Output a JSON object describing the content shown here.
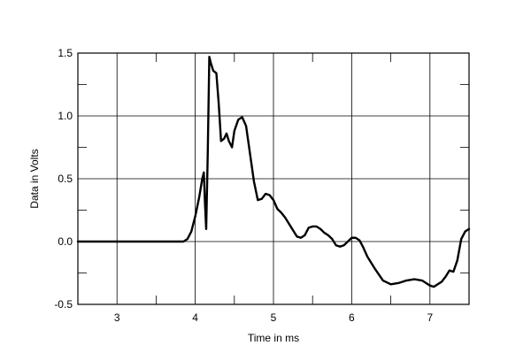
{
  "chart_data": {
    "type": "line",
    "title": "",
    "xlabel": "Time in ms",
    "ylabel": "Data in Volts",
    "xlim": [
      2.5,
      7.5
    ],
    "ylim": [
      -0.5,
      1.5
    ],
    "x_ticks": [
      3,
      4,
      5,
      6,
      7
    ],
    "x_tick_labels": [
      "3",
      "4",
      "5",
      "6",
      "7"
    ],
    "y_ticks": [
      -0.5,
      0.0,
      0.5,
      1.0,
      1.5
    ],
    "y_tick_labels": [
      "-0.5",
      "0.0",
      "0.5",
      "1.0",
      "1.5"
    ],
    "grid": true,
    "legend": "none",
    "colors": {
      "line": "#000000",
      "grid": "#000000",
      "background": "#ffffff"
    },
    "series": [
      {
        "x": [
          2.5,
          3.0,
          3.5,
          3.85,
          3.9,
          3.95,
          4.0,
          4.05,
          4.09,
          4.11,
          4.125,
          4.14,
          4.16,
          4.18,
          4.2,
          4.23,
          4.27,
          4.3,
          4.33,
          4.37,
          4.4,
          4.43,
          4.47,
          4.5,
          4.55,
          4.6,
          4.65,
          4.7,
          4.75,
          4.8,
          4.85,
          4.9,
          4.95,
          5.0,
          5.05,
          5.1,
          5.15,
          5.2,
          5.25,
          5.3,
          5.35,
          5.4,
          5.45,
          5.5,
          5.55,
          5.6,
          5.65,
          5.7,
          5.75,
          5.8,
          5.85,
          5.9,
          5.95,
          6.0,
          6.05,
          6.1,
          6.15,
          6.2,
          6.3,
          6.4,
          6.5,
          6.6,
          6.7,
          6.8,
          6.9,
          7.0,
          7.05,
          7.1,
          7.15,
          7.2,
          7.25,
          7.3,
          7.35,
          7.4,
          7.45,
          7.5
        ],
        "y": [
          0.0,
          0.0,
          0.0,
          0.0,
          0.02,
          0.08,
          0.2,
          0.35,
          0.5,
          0.55,
          0.3,
          0.1,
          0.7,
          1.47,
          1.42,
          1.36,
          1.34,
          1.1,
          0.8,
          0.82,
          0.86,
          0.8,
          0.75,
          0.88,
          0.97,
          0.99,
          0.92,
          0.7,
          0.48,
          0.33,
          0.34,
          0.38,
          0.37,
          0.33,
          0.26,
          0.23,
          0.19,
          0.14,
          0.09,
          0.04,
          0.03,
          0.05,
          0.11,
          0.12,
          0.12,
          0.1,
          0.07,
          0.05,
          0.02,
          -0.03,
          -0.04,
          -0.03,
          0.0,
          0.03,
          0.03,
          0.01,
          -0.05,
          -0.12,
          -0.22,
          -0.31,
          -0.34,
          -0.33,
          -0.31,
          -0.3,
          -0.31,
          -0.35,
          -0.36,
          -0.34,
          -0.32,
          -0.28,
          -0.23,
          -0.24,
          -0.15,
          0.02,
          0.08,
          0.1
        ]
      }
    ]
  }
}
